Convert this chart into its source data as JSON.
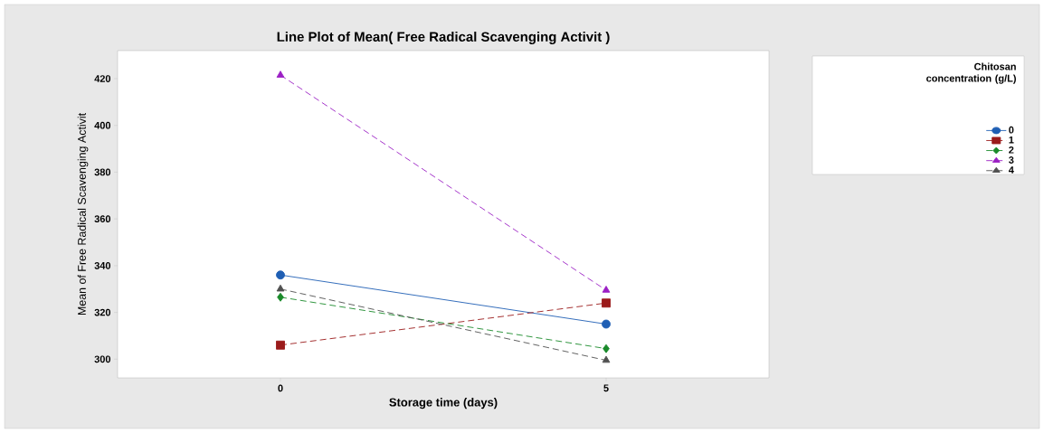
{
  "chart_data": {
    "type": "line",
    "title": "Line Plot of Mean( Free Radical Scavenging Activit )",
    "xlabel": "Storage time (days)",
    "ylabel": "Mean of Free Radical Scavenging Activit",
    "legend_title": "Chitosan concentration (g/L)",
    "categories": [
      "0",
      "5"
    ],
    "ylim": [
      292,
      432
    ],
    "yticks": [
      300,
      320,
      340,
      360,
      380,
      400,
      420
    ],
    "grid": false,
    "legend": "right",
    "series": [
      {
        "name": "0",
        "color": "#1f5fb4",
        "values": [
          336,
          315
        ],
        "marker": "circle",
        "line_style": "solid"
      },
      {
        "name": "1",
        "color": "#9b1b1b",
        "values": [
          306,
          324
        ],
        "marker": "square",
        "line_style": "dashed"
      },
      {
        "name": "2",
        "color": "#1a8a2a",
        "values": [
          326.5,
          304.5
        ],
        "marker": "diamond",
        "line_style": "dashed"
      },
      {
        "name": "3",
        "color": "#9b1fc4",
        "values": [
          421.5,
          329.5
        ],
        "marker": "triangle",
        "line_style": "dashed"
      },
      {
        "name": "4",
        "color": "#505050",
        "values": [
          330,
          299.5
        ],
        "marker": "triangle",
        "line_style": "dashed"
      }
    ]
  }
}
